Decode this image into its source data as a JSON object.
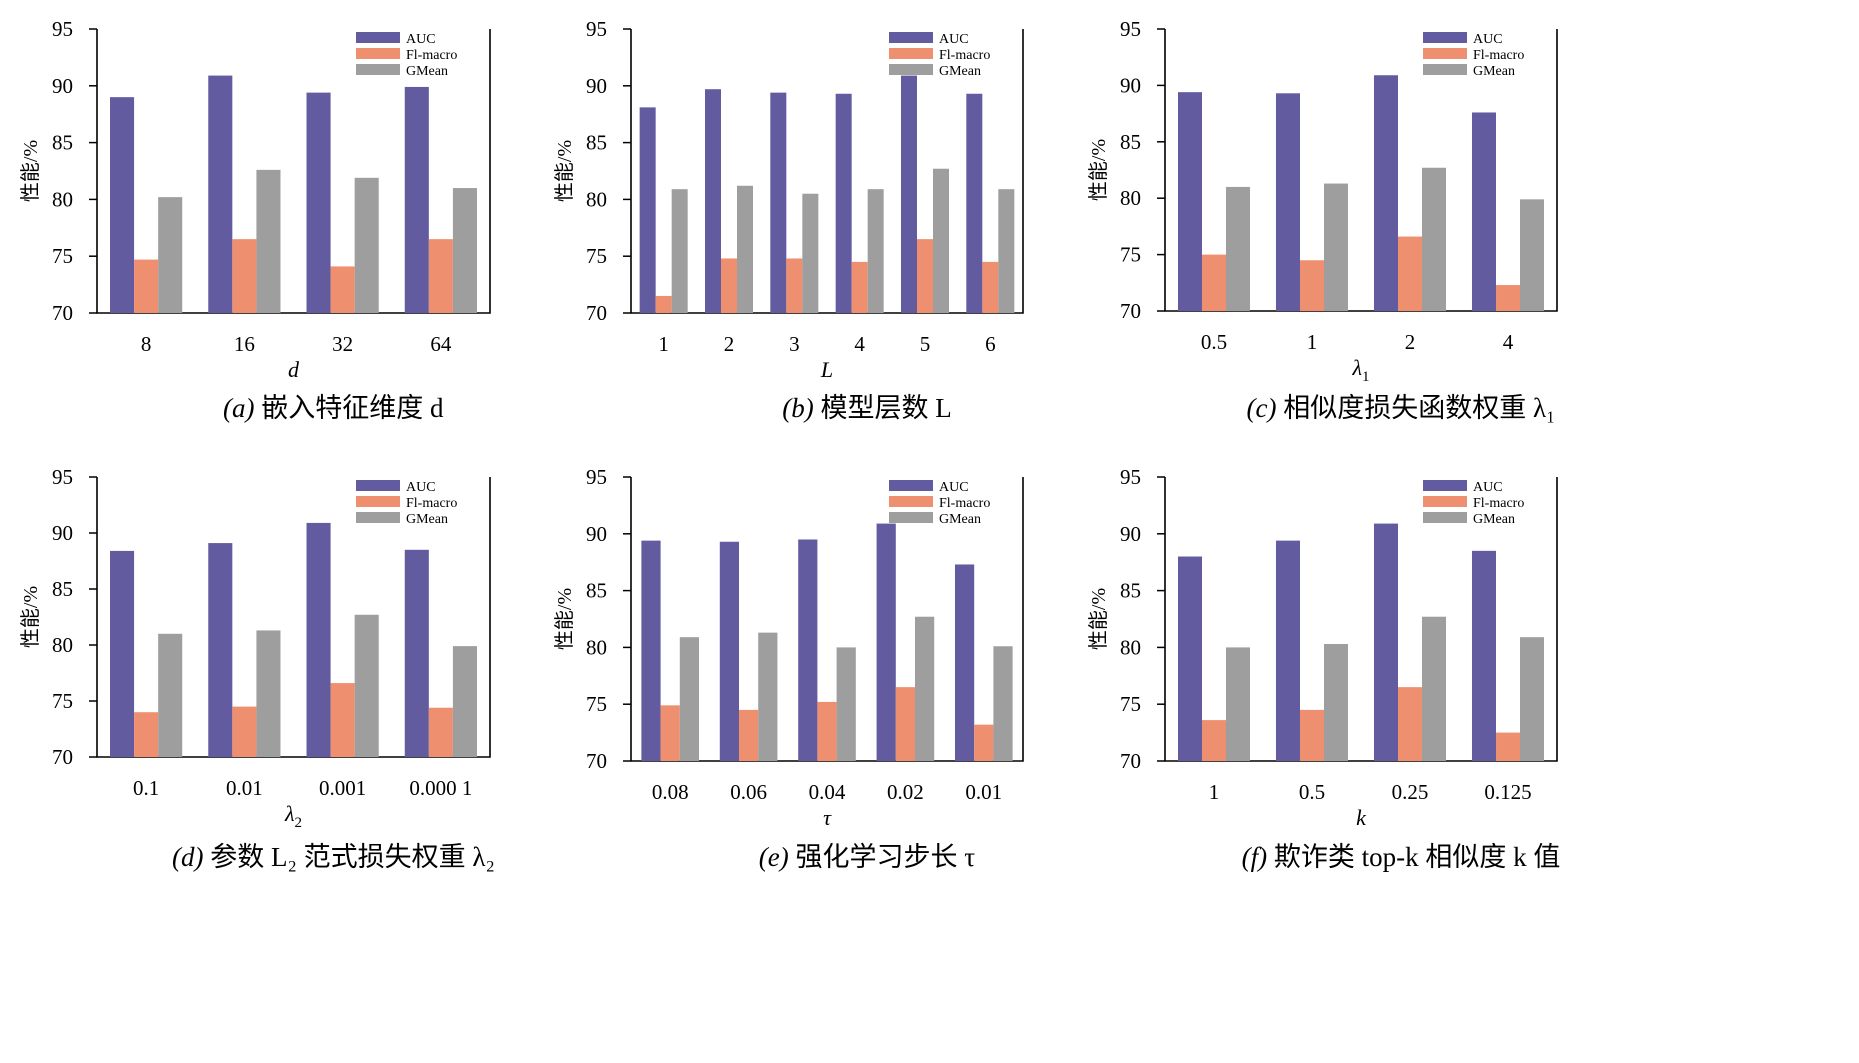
{
  "colors": {
    "AUC": "#625b9f",
    "F1-macro": "#ee8f6f",
    "GMean": "#9e9e9e"
  },
  "chart_data": [
    {
      "type": "bar",
      "categories": [
        "8",
        "16",
        "32",
        "64"
      ],
      "series": [
        {
          "name": "AUC",
          "values": [
            89.0,
            90.9,
            89.4,
            89.9
          ]
        },
        {
          "name": "Fl-macro",
          "values": [
            74.7,
            76.5,
            74.1,
            76.5
          ]
        },
        {
          "name": "GMean",
          "values": [
            80.2,
            82.6,
            81.9,
            81.0
          ]
        }
      ],
      "xlabel": "d",
      "xlabel_sub": "",
      "ylabel": "性能/%",
      "ylim": [
        70,
        95
      ],
      "yticks": [
        "70",
        "75",
        "80",
        "85",
        "90",
        "95"
      ],
      "legend_position": "top-right",
      "caption_prefix": "(a) ",
      "caption_text": "嵌入特征维度 d"
    },
    {
      "type": "bar",
      "categories": [
        "1",
        "2",
        "3",
        "4",
        "5",
        "6"
      ],
      "series": [
        {
          "name": "AUC",
          "values": [
            88.1,
            89.7,
            89.4,
            89.3,
            90.9,
            89.3
          ]
        },
        {
          "name": "Fl-macro",
          "values": [
            71.5,
            74.8,
            74.8,
            74.5,
            76.5,
            74.5
          ]
        },
        {
          "name": "GMean",
          "values": [
            80.9,
            81.2,
            80.5,
            80.9,
            82.7,
            80.9
          ]
        }
      ],
      "xlabel": "L",
      "xlabel_sub": "",
      "ylabel": "性能/%",
      "ylim": [
        70,
        95
      ],
      "yticks": [
        "70",
        "75",
        "80",
        "85",
        "90",
        "95"
      ],
      "legend_position": "top-right",
      "caption_prefix": "(b) ",
      "caption_text": "模型层数 L"
    },
    {
      "type": "bar",
      "categories": [
        "0.5",
        "1",
        "2",
        "4"
      ],
      "series": [
        {
          "name": "AUC",
          "values": [
            89.4,
            89.3,
            90.9,
            87.6
          ]
        },
        {
          "name": "Fl-macro",
          "values": [
            75.0,
            74.5,
            76.6,
            72.3
          ]
        },
        {
          "name": "GMean",
          "values": [
            81.0,
            81.3,
            82.7,
            79.9
          ]
        }
      ],
      "xlabel": "λ",
      "xlabel_sub": "1",
      "ylabel": "性能/%",
      "ylim": [
        70,
        95
      ],
      "yticks": [
        "70",
        "75",
        "80",
        "85",
        "90",
        "95"
      ],
      "legend_position": "top-right",
      "caption_prefix": "(c) ",
      "caption_text": "相似度损失函数权重 λ₁"
    },
    {
      "type": "bar",
      "categories": [
        "0.1",
        "0.01",
        "0.001",
        "0.000 1"
      ],
      "series": [
        {
          "name": "AUC",
          "values": [
            88.4,
            89.1,
            90.9,
            88.5
          ]
        },
        {
          "name": "Fl-macro",
          "values": [
            74.0,
            74.5,
            76.6,
            74.4
          ]
        },
        {
          "name": "GMean",
          "values": [
            81.0,
            81.3,
            82.7,
            79.9
          ]
        }
      ],
      "xlabel": "λ",
      "xlabel_sub": "2",
      "ylabel": "性能/%",
      "ylim": [
        70,
        95
      ],
      "yticks": [
        "70",
        "75",
        "80",
        "85",
        "90",
        "95"
      ],
      "legend_position": "top-right",
      "caption_prefix": "(d) ",
      "caption_text": "参数 L₂ 范式损失权重 λ₂"
    },
    {
      "type": "bar",
      "categories": [
        "0.08",
        "0.06",
        "0.04",
        "0.02",
        "0.01"
      ],
      "series": [
        {
          "name": "AUC",
          "values": [
            89.4,
            89.3,
            89.5,
            90.9,
            87.3
          ]
        },
        {
          "name": "Fl-macro",
          "values": [
            74.9,
            74.5,
            75.2,
            76.5,
            73.2
          ]
        },
        {
          "name": "GMean",
          "values": [
            80.9,
            81.3,
            80.0,
            82.7,
            80.1
          ]
        }
      ],
      "xlabel": "τ",
      "xlabel_sub": "",
      "ylabel": "性能/%",
      "ylim": [
        70,
        95
      ],
      "yticks": [
        "70",
        "75",
        "80",
        "85",
        "90",
        "95"
      ],
      "legend_position": "top-right",
      "caption_prefix": "(e) ",
      "caption_text": "强化学习步长 τ"
    },
    {
      "type": "bar",
      "categories": [
        "1",
        "0.5",
        "0.25",
        "0.125"
      ],
      "series": [
        {
          "name": "AUC",
          "values": [
            88.0,
            89.4,
            90.9,
            88.5
          ]
        },
        {
          "name": "Fl-macro",
          "values": [
            73.6,
            74.5,
            76.5,
            72.5
          ]
        },
        {
          "name": "GMean",
          "values": [
            80.0,
            80.3,
            82.7,
            80.9
          ]
        }
      ],
      "xlabel": "k",
      "xlabel_sub": "",
      "ylabel": "性能/%",
      "ylim": [
        70,
        95
      ],
      "yticks": [
        "70",
        "75",
        "80",
        "85",
        "90",
        "95"
      ],
      "legend_position": "top-right",
      "caption_prefix": "(f) ",
      "caption_text": "欺诈类 top-k 相似度 k 值"
    }
  ]
}
